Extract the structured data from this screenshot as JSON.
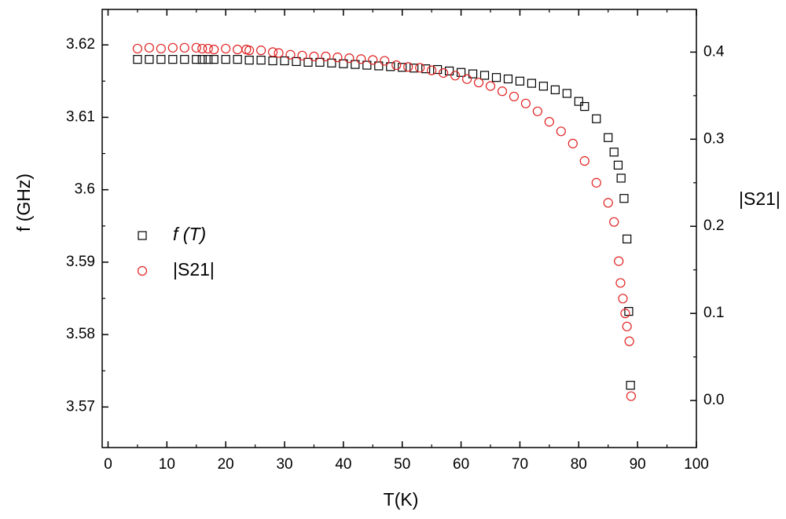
{
  "chart_data": {
    "type": "scatter",
    "x_label": "T(K)",
    "y_label": "f (GHz)",
    "y2_label": "|S21|",
    "xlim": [
      -1,
      100
    ],
    "xticks": [
      0,
      10,
      20,
      30,
      40,
      50,
      60,
      70,
      80,
      90,
      100
    ],
    "ylim": [
      3.5644,
      3.6249
    ],
    "yticks": [
      3.57,
      3.58,
      3.59,
      3.6,
      3.61,
      3.62
    ],
    "y2lim": [
      -0.054,
      0.449
    ],
    "y2ticks": [
      {
        "value": 0,
        "label": "0.0"
      },
      0.1,
      0.2,
      0.3,
      0.4
    ],
    "legend": "left",
    "series": [
      {
        "name": "f (T)",
        "color": "#000000",
        "marker": "square",
        "axis": "y",
        "x": [
          5,
          7,
          9,
          11,
          13,
          15,
          16,
          17,
          18,
          20,
          22,
          24,
          26,
          28,
          30,
          32,
          34,
          36,
          38,
          40,
          42,
          44,
          46,
          48,
          50,
          52,
          54,
          56,
          58,
          60,
          62,
          64,
          66,
          68,
          70,
          72,
          74,
          76,
          78,
          80,
          81,
          83,
          85,
          86,
          86.7,
          87.2,
          87.7,
          88.2,
          88.5,
          88.8
        ],
        "values": [
          3.618,
          3.618,
          3.618,
          3.618,
          3.618,
          3.618,
          3.618,
          3.618,
          3.618,
          3.618,
          3.618,
          3.6179,
          3.6179,
          3.6178,
          3.6178,
          3.6177,
          3.6176,
          3.6176,
          3.6175,
          3.6174,
          3.6173,
          3.6172,
          3.6171,
          3.617,
          3.6169,
          3.6168,
          3.6167,
          3.6166,
          3.6164,
          3.6162,
          3.616,
          3.6158,
          3.6155,
          3.6153,
          3.615,
          3.6147,
          3.6143,
          3.6138,
          3.6133,
          3.6122,
          3.6115,
          3.6098,
          3.6072,
          3.6052,
          3.6034,
          3.6016,
          3.5988,
          3.5932,
          3.5832,
          3.573
        ]
      },
      {
        "name": "|S21|",
        "color": "#e02020",
        "marker": "circle",
        "axis": "y2",
        "x": [
          5,
          7,
          9,
          11,
          13,
          15,
          16,
          17,
          18,
          20,
          22,
          23.5,
          24,
          26,
          28,
          29,
          31,
          33,
          35,
          37,
          39,
          41,
          43,
          45,
          47,
          49,
          51,
          53,
          55,
          57,
          59,
          61,
          63,
          65,
          67,
          69,
          71,
          73,
          75,
          77,
          79,
          81,
          83,
          85,
          86,
          86.8,
          87.1,
          87.5,
          87.9,
          88.2,
          88.6,
          88.9
        ],
        "values": [
          0.404,
          0.405,
          0.404,
          0.405,
          0.405,
          0.405,
          0.404,
          0.404,
          0.403,
          0.404,
          0.403,
          0.403,
          0.402,
          0.402,
          0.4,
          0.399,
          0.397,
          0.396,
          0.395,
          0.395,
          0.394,
          0.393,
          0.392,
          0.391,
          0.39,
          0.385,
          0.383,
          0.382,
          0.379,
          0.376,
          0.373,
          0.369,
          0.365,
          0.361,
          0.355,
          0.349,
          0.341,
          0.332,
          0.32,
          0.309,
          0.295,
          0.275,
          0.25,
          0.227,
          0.205,
          0.16,
          0.135,
          0.117,
          0.1,
          0.085,
          0.068,
          0.005
        ]
      }
    ]
  }
}
